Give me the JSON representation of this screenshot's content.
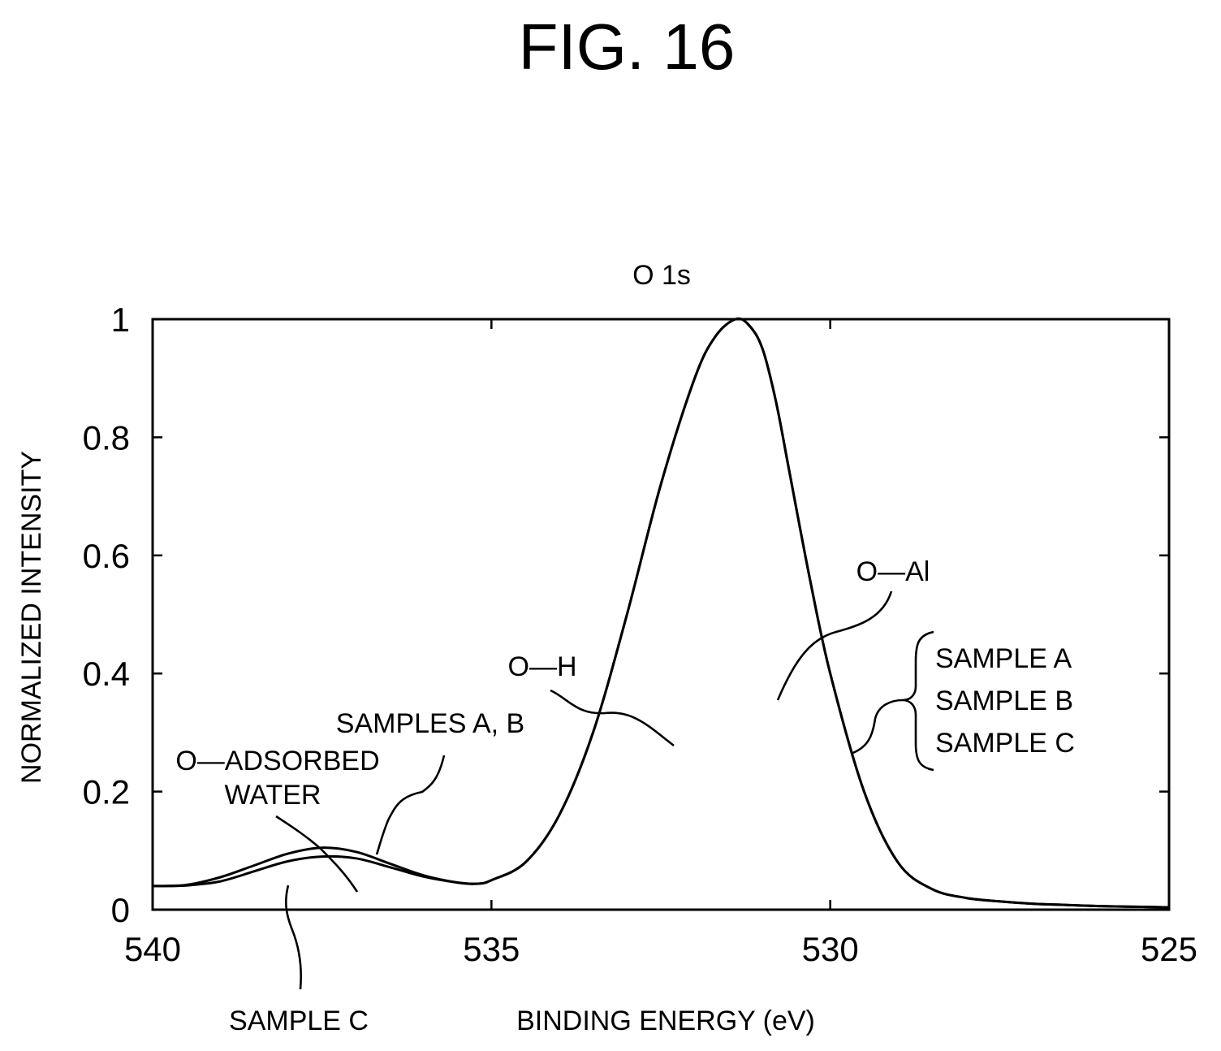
{
  "figure_title": "FIG. 16",
  "chart_data": {
    "type": "line",
    "title": "O 1s",
    "xlabel": "BINDING ENERGY (eV)",
    "ylabel": "NORMALIZED INTENSITY",
    "xlim": [
      540,
      525
    ],
    "ylim": [
      0,
      1
    ],
    "x_reversed": true,
    "x_ticks": [
      "540",
      "535",
      "530",
      "525"
    ],
    "y_ticks": [
      "0",
      "0.2",
      "0.4",
      "0.6",
      "0.8",
      "1"
    ],
    "grid": false,
    "series": [
      {
        "name": "SAMPLES A, B",
        "x": [
          540,
          539.5,
          539,
          538.5,
          538,
          537.5,
          537,
          536.5,
          536,
          535.5,
          535.2,
          535,
          534.5,
          534,
          533.5,
          533,
          532.5,
          532,
          531.7,
          531.4,
          531.2,
          531,
          530.8,
          530.6,
          530.3,
          530,
          529.5,
          529,
          528.5,
          528,
          527.5,
          527,
          526.5,
          526,
          525.5,
          525
        ],
        "y": [
          0.04,
          0.042,
          0.055,
          0.075,
          0.095,
          0.105,
          0.098,
          0.078,
          0.058,
          0.046,
          0.044,
          0.05,
          0.08,
          0.16,
          0.3,
          0.5,
          0.72,
          0.9,
          0.97,
          1.0,
          0.99,
          0.95,
          0.86,
          0.74,
          0.56,
          0.4,
          0.2,
          0.08,
          0.035,
          0.02,
          0.014,
          0.01,
          0.008,
          0.006,
          0.005,
          0.004
        ]
      },
      {
        "name": "SAMPLE C",
        "x": [
          540,
          539.5,
          539,
          538.5,
          538,
          537.5,
          537,
          536.5,
          536,
          535.5,
          535.2,
          535,
          534.5,
          534,
          533.5,
          533,
          532.5,
          532,
          531.7,
          531.4,
          531.2,
          531,
          530.8,
          530.6,
          530.3,
          530,
          529.5,
          529,
          528.5,
          528,
          527.5,
          527,
          526.5,
          526,
          525.5,
          525
        ],
        "y": [
          0.04,
          0.041,
          0.048,
          0.065,
          0.082,
          0.09,
          0.087,
          0.072,
          0.056,
          0.046,
          0.044,
          0.05,
          0.08,
          0.16,
          0.3,
          0.5,
          0.72,
          0.9,
          0.97,
          1.0,
          0.99,
          0.95,
          0.86,
          0.74,
          0.56,
          0.4,
          0.2,
          0.08,
          0.035,
          0.02,
          0.014,
          0.01,
          0.008,
          0.006,
          0.005,
          0.004
        ]
      }
    ],
    "annotations": {
      "o_h": "O—H",
      "o_al": "O—Al",
      "o_water_line1": "O—ADSORBED",
      "o_water_line2": "WATER",
      "samples_ab": "SAMPLES A, B",
      "sample_c_bottom": "SAMPLE C",
      "legend_a": "SAMPLE A",
      "legend_b": "SAMPLE B",
      "legend_c": "SAMPLE C"
    }
  }
}
